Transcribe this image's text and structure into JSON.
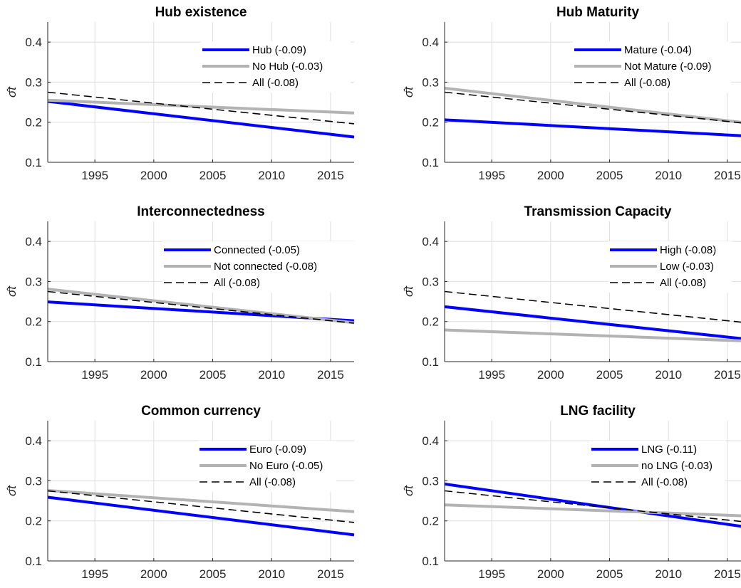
{
  "colors": {
    "blue": "#0000ff",
    "gray": "#b3b3b3",
    "black": "#000000",
    "grid": "#dedede"
  },
  "chart_data": [
    {
      "type": "line",
      "title": "Hub existence",
      "ylabel": "σ̂t",
      "xlim": [
        1991,
        2017
      ],
      "ylim": [
        0.1,
        0.45
      ],
      "xticks": [
        1995,
        2000,
        2005,
        2010,
        2015
      ],
      "yticks": [
        0.1,
        0.2,
        0.3,
        0.4
      ],
      "grid": true,
      "legend": "top-right",
      "series": [
        {
          "name": "Hub (-0.09)",
          "style": "blue",
          "x": [
            1991,
            2017
          ],
          "y": [
            0.252,
            0.163
          ]
        },
        {
          "name": "No Hub (-0.03)",
          "style": "gray",
          "x": [
            1991,
            2017
          ],
          "y": [
            0.255,
            0.223
          ]
        },
        {
          "name": "All (-0.08)",
          "style": "dashed",
          "x": [
            1991,
            2017
          ],
          "y": [
            0.275,
            0.196
          ]
        }
      ]
    },
    {
      "type": "line",
      "title": "Hub Maturity",
      "ylabel": "σ̂t",
      "xlim": [
        1991,
        2017
      ],
      "ylim": [
        0.1,
        0.45
      ],
      "xticks": [
        1995,
        2000,
        2005,
        2010,
        2015
      ],
      "yticks": [
        0.1,
        0.2,
        0.3,
        0.4
      ],
      "grid": true,
      "legend": "top-right",
      "series": [
        {
          "name": "Mature (-0.04)",
          "style": "blue",
          "x": [
            1991,
            2017
          ],
          "y": [
            0.206,
            0.165
          ]
        },
        {
          "name": "Not Mature (-0.09)",
          "style": "gray",
          "x": [
            1991,
            2017
          ],
          "y": [
            0.285,
            0.197
          ]
        },
        {
          "name": "All (-0.08)",
          "style": "dashed",
          "x": [
            1991,
            2017
          ],
          "y": [
            0.275,
            0.196
          ]
        }
      ]
    },
    {
      "type": "line",
      "title": "Interconnectedness",
      "ylabel": "σ̂t",
      "xlim": [
        1991,
        2017
      ],
      "ylim": [
        0.1,
        0.45
      ],
      "xticks": [
        1995,
        2000,
        2005,
        2010,
        2015
      ],
      "yticks": [
        0.1,
        0.2,
        0.3,
        0.4
      ],
      "grid": true,
      "legend": "top-right",
      "series": [
        {
          "name": "Connected (-0.05)",
          "style": "blue",
          "x": [
            1991,
            2017
          ],
          "y": [
            0.249,
            0.202
          ]
        },
        {
          "name": "Not connected (-0.08)",
          "style": "gray",
          "x": [
            1991,
            2017
          ],
          "y": [
            0.281,
            0.197
          ]
        },
        {
          "name": "All (-0.08)",
          "style": "dashed",
          "x": [
            1991,
            2017
          ],
          "y": [
            0.275,
            0.196
          ]
        }
      ]
    },
    {
      "type": "line",
      "title": "Transmission Capacity",
      "ylabel": "σ̂t",
      "xlim": [
        1991,
        2017
      ],
      "ylim": [
        0.1,
        0.45
      ],
      "xticks": [
        1995,
        2000,
        2005,
        2010,
        2015
      ],
      "yticks": [
        0.1,
        0.2,
        0.3,
        0.4
      ],
      "grid": true,
      "legend": "top-right",
      "series": [
        {
          "name": "High (-0.08)",
          "style": "blue",
          "x": [
            1991,
            2017
          ],
          "y": [
            0.237,
            0.155
          ]
        },
        {
          "name": "Low (-0.03)",
          "style": "gray",
          "x": [
            1991,
            2017
          ],
          "y": [
            0.179,
            0.151
          ]
        },
        {
          "name": "All (-0.08)",
          "style": "dashed",
          "x": [
            1991,
            2017
          ],
          "y": [
            0.275,
            0.196
          ]
        }
      ]
    },
    {
      "type": "line",
      "title": "Common currency",
      "ylabel": "σ̂t",
      "xlim": [
        1991,
        2017
      ],
      "ylim": [
        0.1,
        0.45
      ],
      "xticks": [
        1995,
        2000,
        2005,
        2010,
        2015
      ],
      "yticks": [
        0.1,
        0.2,
        0.3,
        0.4
      ],
      "grid": true,
      "legend": "top-right",
      "series": [
        {
          "name": "Euro (-0.09)",
          "style": "blue",
          "x": [
            1991,
            2017
          ],
          "y": [
            0.259,
            0.165
          ]
        },
        {
          "name": "No Euro (-0.05)",
          "style": "gray",
          "x": [
            1991,
            2017
          ],
          "y": [
            0.276,
            0.223
          ]
        },
        {
          "name": "All (-0.08)",
          "style": "dashed",
          "x": [
            1991,
            2017
          ],
          "y": [
            0.275,
            0.196
          ]
        }
      ]
    },
    {
      "type": "line",
      "title": "LNG facility",
      "ylabel": "σ̂t",
      "xlim": [
        1991,
        2017
      ],
      "ylim": [
        0.1,
        0.45
      ],
      "xticks": [
        1995,
        2000,
        2005,
        2010,
        2015
      ],
      "yticks": [
        0.1,
        0.2,
        0.3,
        0.4
      ],
      "grid": true,
      "legend": "top-right",
      "series": [
        {
          "name": "LNG (-0.11)",
          "style": "blue",
          "x": [
            1991,
            2017
          ],
          "y": [
            0.292,
            0.183
          ]
        },
        {
          "name": "no LNG (-0.03)",
          "style": "gray",
          "x": [
            1991,
            2017
          ],
          "y": [
            0.24,
            0.212
          ]
        },
        {
          "name": "All (-0.08)",
          "style": "dashed",
          "x": [
            1991,
            2017
          ],
          "y": [
            0.275,
            0.196
          ]
        }
      ]
    }
  ]
}
